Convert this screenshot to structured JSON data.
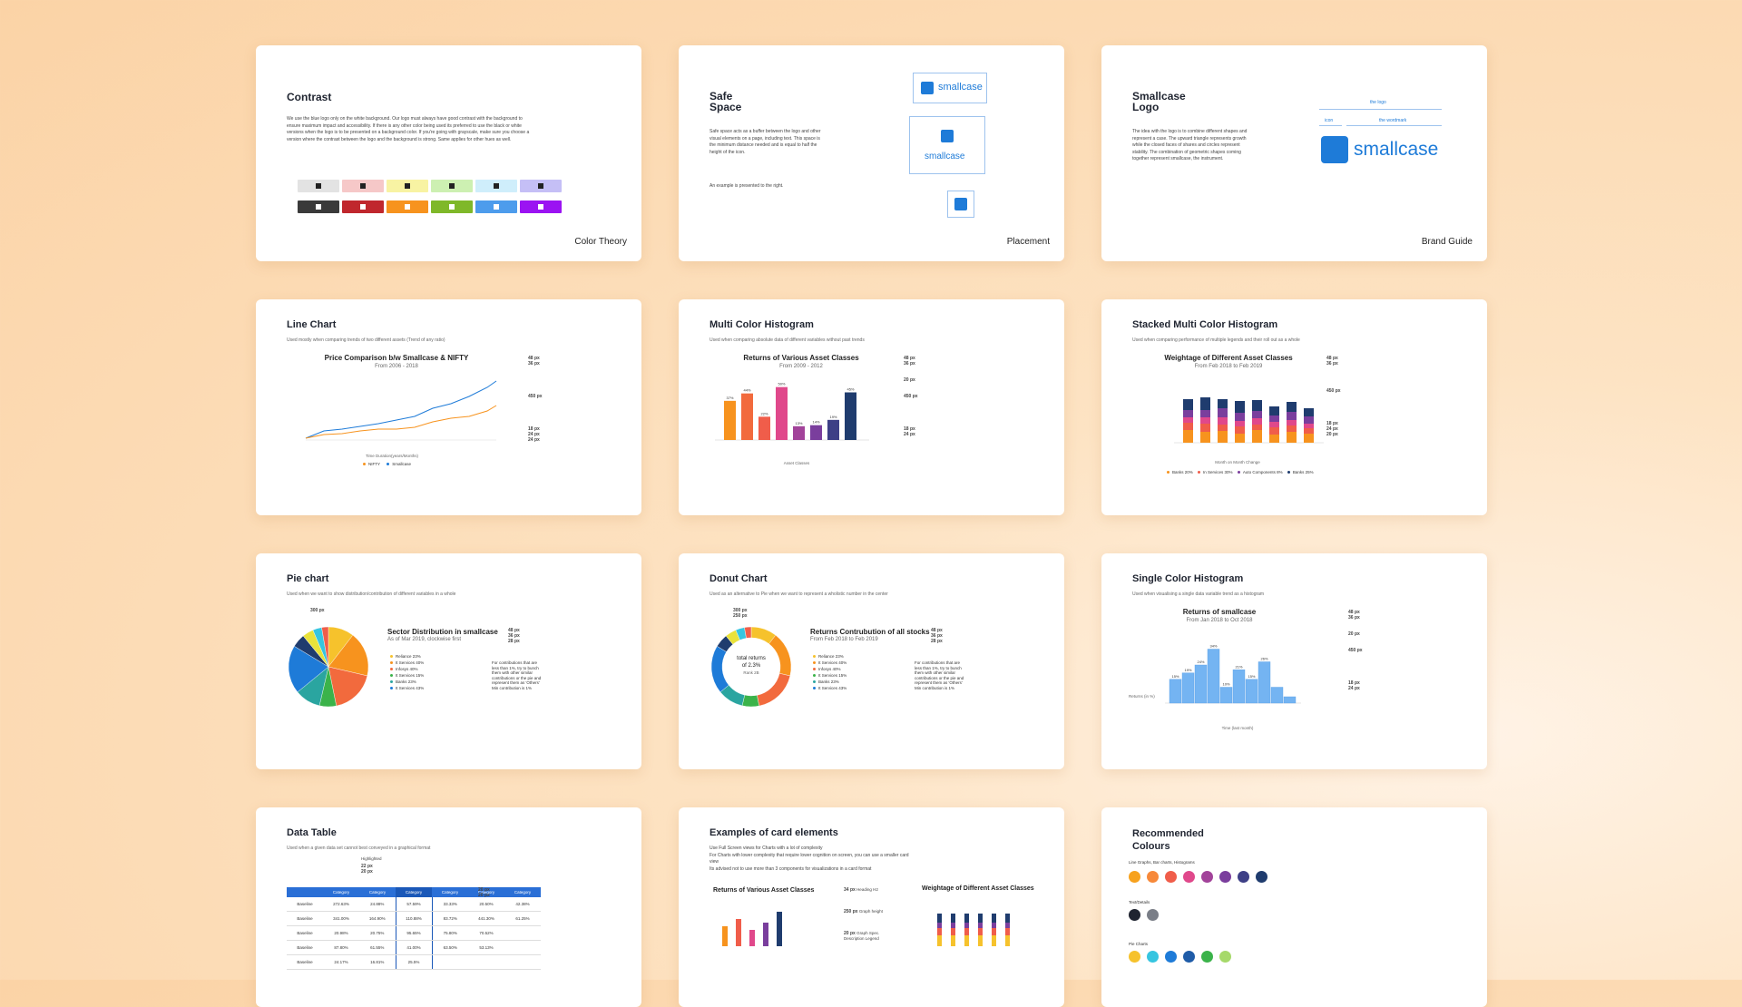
{
  "colors": {
    "brand_blue": "#1e7bd8",
    "orange": "#f7931e",
    "coral": "#f05d4a",
    "pink": "#e0488b",
    "purple": "#7a3e9d",
    "navy": "#1f3c6e",
    "yellow": "#f6c22c"
  },
  "contrast": {
    "title": "Contrast",
    "desc": "We use the blue logo only on the white background. Our logo must always have good contrast with the background to ensure maximum impact and accessibility. If there is any other color being used its preferred to use the black or white versions when the logo is to be presented on a background color. If you're going with grayscale, make sure you choose a version where the contrast between the logo and the background is strong. Same applies for other hues as well.",
    "tag": "Color Theory",
    "light_swatches": [
      "#e3e3e3",
      "#f6c8c8",
      "#f8f3a3",
      "#cdf0b2",
      "#cfeefb",
      "#c5bff6"
    ],
    "dark_swatches": [
      "#3a3a3a",
      "#c0272d",
      "#f7931e",
      "#7fb829",
      "#4d9cec",
      "#9b13f2"
    ]
  },
  "safe": {
    "title_1": "Safe",
    "title_2": "Space",
    "desc": "Safe space acts as a buffer between the logo and other visual elements on a page, including text. This space is the minimum distance needed and is equal to half the height of the icon.",
    "desc2": "An example is presented to the right.",
    "wordmark": "smallcase",
    "tag": "Placement"
  },
  "brand": {
    "title_1": "Smallcase",
    "title_2": "Logo",
    "desc": "The idea with the logo is to combine different shapes and represent a case. The upward triangle represents growth while the closed faces of shares and circles represent stability. The combination of geometric shapes coming together represent smallcase, the instrument.",
    "label_logo": "the logo",
    "label_icon": "icon",
    "label_wordmark": "the wordmark",
    "wordmark": "smallcase",
    "tag": "Brand Guide"
  },
  "line": {
    "title": "Line Chart",
    "sub": "Used mostly when comparing trends of two different assets (Trend of any ratio)",
    "chart_title": "Price Comparison b/w Smallcase & NIFTY",
    "chart_sub": "From 2006 - 2018",
    "xlabel": "Time Duration(years/Months)",
    "legend": [
      "NIFTY",
      "Smallcase"
    ],
    "spec": [
      "48 px",
      "36 px",
      "450 px",
      "18 px",
      "24 px",
      "24 px"
    ]
  },
  "multi": {
    "title": "Multi Color Histogram",
    "sub": "Used when comparing absolute data of different variables without past trends",
    "chart_title": "Returns of Various Asset Classes",
    "chart_sub": "From 2009 - 2012",
    "xlabel": "Asset Classes",
    "values": [
      37,
      44,
      22,
      50,
      13,
      14,
      19,
      45
    ],
    "labels": [
      "37%",
      "44%",
      "22%",
      "50%",
      "13%",
      "14%",
      "19%",
      "45%"
    ],
    "bar_colors": [
      "#f7931e",
      "#f26a3d",
      "#f05d4a",
      "#e0488b",
      "#a2439a",
      "#7a3e9d",
      "#3d3f86",
      "#1f3c6e"
    ],
    "spec": [
      "48 px",
      "36 px",
      "20 px",
      "450 px",
      "18 px",
      "24 px"
    ]
  },
  "stacked": {
    "title": "Stacked Multi Color Histogram",
    "sub": "Used when comparing performance of multiple legends and their roll out as a whole",
    "chart_title": "Weightage of Different Asset Classes",
    "chart_sub": "From Feb 2018 to Feb 2019",
    "xlabel": "Month on Month Change",
    "legend": [
      "Banks 20%",
      "In Services 30%",
      "Auto Components 8%",
      "Banks 25%"
    ],
    "spec": [
      "48 px",
      "36 px",
      "450 px",
      "18 px",
      "24 px",
      "20 px"
    ]
  },
  "pie": {
    "title": "Pie chart",
    "sub": "Used when we want to show distribution/contribution of different variables in a whole",
    "spec_top": "300 px",
    "chart_title": "Sector Distribution in smallcase",
    "chart_sub": "As of Mar 2019, clockwise first",
    "legend": [
      "Reliance 23%",
      "It Services 40%",
      "Infosys 40%",
      "It Services 15%",
      "Banks 23%",
      "It Services 43%"
    ],
    "note": "For contributions that are less than 1%, try to bunch them with other similar contributions or the pie and represent them as 'Others' Min contribution is 1%",
    "spec": [
      "48 px",
      "36 px",
      "28 px"
    ],
    "slices": [
      23,
      40,
      40,
      15,
      23,
      43,
      12,
      10,
      8,
      6
    ],
    "slice_colors": [
      "#f6c22c",
      "#f7931e",
      "#f26a3d",
      "#3bb34a",
      "#2aa5a0",
      "#1e7bd8",
      "#1f3c6e",
      "#e9e23a",
      "#36c5e0",
      "#f05d4a"
    ]
  },
  "donut": {
    "title": "Donut Chart",
    "sub": "Used as an alternative to Pie when we want to represent a wholistic number in the center",
    "spec_top": [
      "300 px",
      "250 px"
    ],
    "center_1": "total returns",
    "center_2": "of 2.3%",
    "center_3": "Rank 2B",
    "chart_title": "Returns Contrubution of all stocks",
    "chart_sub": "From Feb 2018 to Feb 2019",
    "legend": [
      "Reliance 23%",
      "It Services 40%",
      "Infosys 40%",
      "It Services 15%",
      "Banks 23%",
      "It Services 43%"
    ],
    "note": "For contributions that are less than 1%, try to bunch them with other similar contributions or the pie and represent them as 'Others' Min contribution is 1%",
    "spec": [
      "48 px",
      "36 px",
      "28 px"
    ]
  },
  "single": {
    "title": "Single Color Histogram",
    "sub": "Used when visualising a single data variable trend as a histogram",
    "chart_title": "Returns of smallcase",
    "chart_sub": "From Jan 2018 to Oct 2018",
    "ylabel": "Returns (in %)",
    "xlabel": "Time (last month)",
    "values": [
      15,
      19,
      24,
      34,
      10,
      21,
      15,
      26,
      10,
      4
    ],
    "labels": [
      "15%",
      "19%",
      "24%",
      "34%",
      "10%",
      "21%",
      "15%",
      "26%",
      "",
      ""
    ],
    "spec": [
      "48 px",
      "36 px",
      "20 px",
      "450 px",
      "18 px",
      "24 px"
    ]
  },
  "table": {
    "title": "Data Table",
    "sub": "Used when a given data set cannot best conveyed in a graphical format",
    "highlight": "Highlighted",
    "spec": [
      "22 px",
      "20 px",
      "20 px",
      "20 px"
    ],
    "headers": [
      "",
      "Category",
      "Category",
      "Category",
      "Category",
      "Category",
      "Category"
    ],
    "rows": [
      [
        "Baseline",
        "272.63%",
        "24.88%",
        "57.59%",
        "33.33%",
        "20.50%",
        "42.38%"
      ],
      [
        "Baseline",
        "341.00%",
        "164.90%",
        "110.88%",
        "83.72%",
        "441.30%",
        "61.25%"
      ],
      [
        "Baseline",
        "20.98%",
        "20.75%",
        "95.65%",
        "75.80%",
        "70.52%",
        ""
      ],
      [
        "Baseline",
        "87.80%",
        "61.55%",
        "41.00%",
        "63.50%",
        "53.13%",
        ""
      ],
      [
        "Baseline",
        "24.17%",
        "16.81%",
        "25.5%",
        "",
        "",
        ""
      ]
    ]
  },
  "cards": {
    "title": "Examples of card elements",
    "desc": [
      "Use Full Screen views for Charts with a lot of complexity",
      "For Charts with lower complexity that require lower cognition on screen, you can use a smaller card view",
      "Its advised not to use more than 3 components for visualizations in a card format"
    ],
    "chart1_title": "Returns of Various Asset Classes",
    "chart2_title": "Weightage of Different Asset Classes",
    "spec": [
      "34 px",
      "250 px",
      "20 px"
    ],
    "spec_labels": [
      "Heading H2",
      "Graph height",
      "Graph Spec. Description Legend"
    ]
  },
  "colours": {
    "title_1": "Recommended",
    "title_2": "Colours",
    "group1": "Line Graphs, Bar charts, Histograms",
    "group1_colors": [
      "#f7a21e",
      "#f7893a",
      "#f05d4a",
      "#e0488b",
      "#a2439a",
      "#7a3e9d",
      "#3d3f86",
      "#1f3c6e"
    ],
    "group2": "Text/Details",
    "group2_colors": [
      "#1f2430",
      "#7a7e87"
    ],
    "group3": "Pie Charts",
    "group3_colors": [
      "#f6c22c",
      "#36c5e0",
      "#1e7bd8",
      "#1f5ca8",
      "#3bb34a",
      "#a6d96a"
    ]
  }
}
